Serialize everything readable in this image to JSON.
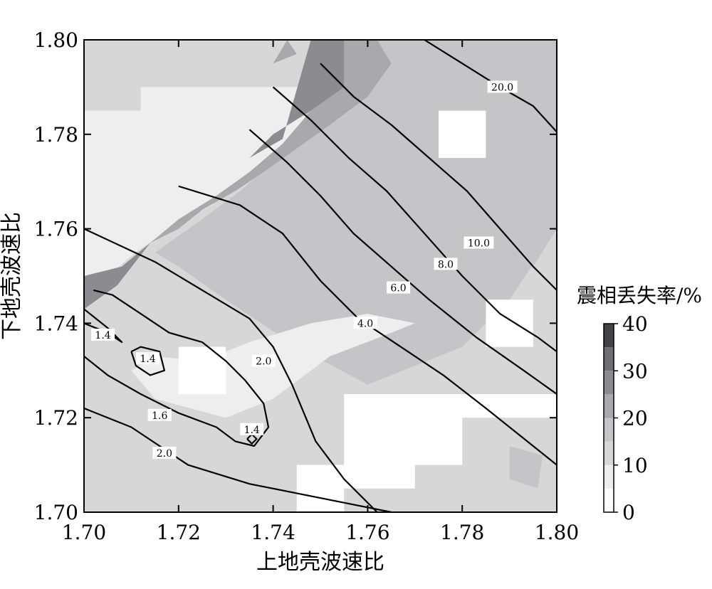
{
  "chart_data": {
    "type": "heatmap",
    "xlabel": "上地壳波速比",
    "ylabel": "下地壳波速比",
    "xlim": [
      1.7,
      1.8
    ],
    "ylim": [
      1.7,
      1.8
    ],
    "x_ticks": [
      "1.70",
      "1.72",
      "1.74",
      "1.76",
      "1.78",
      "1.80"
    ],
    "y_ticks": [
      "1.70",
      "1.72",
      "1.74",
      "1.76",
      "1.78",
      "1.80"
    ],
    "colorbar": {
      "title": "震相丢失率/%",
      "range": [
        0,
        40
      ],
      "ticks": [
        "0",
        "10",
        "20",
        "30",
        "40"
      ],
      "levels": [
        0,
        5,
        10,
        15,
        20,
        25,
        30,
        35,
        40
      ],
      "colors": [
        "#ffffff",
        "#eeeeee",
        "#d7d7d8",
        "#c5c5c7",
        "#a9a9ac",
        "#8c8c90",
        "#6f6f72",
        "#444446"
      ]
    },
    "fill_regions": [
      {
        "level": 1,
        "points": [
          [
            1.7,
            1.785
          ],
          [
            1.712,
            1.785
          ],
          [
            1.712,
            1.79
          ],
          [
            1.745,
            1.79
          ],
          [
            1.75,
            1.795
          ],
          [
            1.747,
            1.78
          ],
          [
            1.74,
            1.775
          ],
          [
            1.733,
            1.77
          ],
          [
            1.727,
            1.765
          ],
          [
            1.718,
            1.76
          ],
          [
            1.711,
            1.755
          ],
          [
            1.705,
            1.75
          ],
          [
            1.7,
            1.75
          ]
        ]
      },
      {
        "level": 3,
        "points": [
          [
            1.75,
            1.8
          ],
          [
            1.8,
            1.8
          ],
          [
            1.8,
            1.76
          ],
          [
            1.79,
            1.745
          ],
          [
            1.78,
            1.735
          ],
          [
            1.76,
            1.727
          ],
          [
            1.745,
            1.735
          ],
          [
            1.73,
            1.745
          ],
          [
            1.72,
            1.752
          ],
          [
            1.715,
            1.755
          ],
          [
            1.725,
            1.762
          ],
          [
            1.733,
            1.768
          ],
          [
            1.74,
            1.774
          ],
          [
            1.746,
            1.779
          ]
        ]
      },
      {
        "level": 4,
        "points": [
          [
            1.748,
            1.8
          ],
          [
            1.762,
            1.8
          ],
          [
            1.765,
            1.795
          ],
          [
            1.76,
            1.788
          ],
          [
            1.752,
            1.782
          ],
          [
            1.745,
            1.777
          ],
          [
            1.738,
            1.772
          ],
          [
            1.732,
            1.768
          ],
          [
            1.725,
            1.764
          ],
          [
            1.72,
            1.76
          ],
          [
            1.714,
            1.757
          ],
          [
            1.72,
            1.762
          ],
          [
            1.728,
            1.767
          ],
          [
            1.735,
            1.772
          ],
          [
            1.742,
            1.778
          ],
          [
            1.748,
            1.785
          ]
        ]
      },
      {
        "level": 5,
        "points": [
          [
            1.748,
            1.8
          ],
          [
            1.755,
            1.8
          ],
          [
            1.755,
            1.79
          ],
          [
            1.748,
            1.785
          ],
          [
            1.74,
            1.78
          ],
          [
            1.735,
            1.775
          ],
          [
            1.742,
            1.779
          ]
        ]
      },
      {
        "level": 5,
        "points": [
          [
            1.7,
            1.75
          ],
          [
            1.708,
            1.752
          ],
          [
            1.714,
            1.757
          ],
          [
            1.707,
            1.748
          ],
          [
            1.7,
            1.743
          ]
        ]
      },
      {
        "level": 4,
        "points": [
          [
            1.74,
            1.795
          ],
          [
            1.743,
            1.8
          ],
          [
            1.745,
            1.797
          ]
        ]
      },
      {
        "level": 1,
        "points": [
          [
            1.71,
            1.73
          ],
          [
            1.715,
            1.724
          ],
          [
            1.73,
            1.72
          ],
          [
            1.74,
            1.724
          ],
          [
            1.752,
            1.733
          ],
          [
            1.765,
            1.738
          ],
          [
            1.77,
            1.74
          ],
          [
            1.76,
            1.742
          ],
          [
            1.748,
            1.74
          ],
          [
            1.735,
            1.736
          ],
          [
            1.725,
            1.732
          ],
          [
            1.715,
            1.733
          ]
        ]
      },
      {
        "level": 0,
        "points": [
          [
            1.72,
            1.735
          ],
          [
            1.73,
            1.735
          ],
          [
            1.73,
            1.725
          ],
          [
            1.72,
            1.725
          ]
        ]
      },
      {
        "level": 0,
        "points": [
          [
            1.755,
            1.725
          ],
          [
            1.8,
            1.725
          ],
          [
            1.8,
            1.72
          ],
          [
            1.78,
            1.72
          ],
          [
            1.78,
            1.71
          ],
          [
            1.77,
            1.71
          ],
          [
            1.77,
            1.705
          ],
          [
            1.755,
            1.705
          ]
        ]
      },
      {
        "level": 0,
        "points": [
          [
            1.745,
            1.71
          ],
          [
            1.755,
            1.71
          ],
          [
            1.755,
            1.7
          ],
          [
            1.745,
            1.7
          ]
        ]
      },
      {
        "level": 0,
        "points": [
          [
            1.775,
            1.785
          ],
          [
            1.785,
            1.785
          ],
          [
            1.785,
            1.775
          ],
          [
            1.775,
            1.775
          ]
        ]
      },
      {
        "level": 0,
        "points": [
          [
            1.785,
            1.745
          ],
          [
            1.795,
            1.745
          ],
          [
            1.795,
            1.735
          ],
          [
            1.785,
            1.735
          ]
        ]
      },
      {
        "level": 3,
        "points": [
          [
            1.785,
            1.763
          ],
          [
            1.795,
            1.768
          ],
          [
            1.8,
            1.76
          ],
          [
            1.795,
            1.752
          ],
          [
            1.787,
            1.755
          ]
        ]
      },
      {
        "level": 3,
        "points": [
          [
            1.735,
            1.757
          ],
          [
            1.748,
            1.76
          ],
          [
            1.755,
            1.752
          ],
          [
            1.745,
            1.748
          ],
          [
            1.736,
            1.75
          ]
        ]
      },
      {
        "level": 3,
        "points": [
          [
            1.79,
            1.714
          ],
          [
            1.797,
            1.712
          ],
          [
            1.796,
            1.705
          ],
          [
            1.79,
            1.707
          ]
        ]
      }
    ],
    "contours": [
      {
        "level": "1.4",
        "points": [
          [
            1.7,
            1.743
          ],
          [
            1.705,
            1.739
          ],
          [
            1.708,
            1.736
          ],
          [
            1.705,
            1.738
          ],
          [
            1.7,
            1.74
          ]
        ],
        "label_at": [
          1.704,
          1.7375
        ]
      },
      {
        "level": "1.4",
        "points": [
          [
            1.71,
            1.734
          ],
          [
            1.712,
            1.735
          ],
          [
            1.716,
            1.734
          ],
          [
            1.717,
            1.73
          ],
          [
            1.714,
            1.729
          ],
          [
            1.711,
            1.731
          ],
          [
            1.71,
            1.734
          ]
        ],
        "label_at": [
          1.7135,
          1.7325
        ]
      },
      {
        "level": "1.4",
        "points": [
          [
            1.7345,
            1.7155
          ],
          [
            1.7355,
            1.7165
          ],
          [
            1.7365,
            1.7155
          ],
          [
            1.7355,
            1.7145
          ],
          [
            1.7345,
            1.7155
          ]
        ],
        "label_at": [
          1.7355,
          1.7175
        ]
      },
      {
        "level": "1.6",
        "points": [
          [
            1.7,
            1.733
          ],
          [
            1.705,
            1.729
          ],
          [
            1.712,
            1.725
          ],
          [
            1.72,
            1.721
          ],
          [
            1.728,
            1.718
          ],
          [
            1.732,
            1.715
          ],
          [
            1.736,
            1.714
          ],
          [
            1.739,
            1.718
          ],
          [
            1.738,
            1.723
          ],
          [
            1.734,
            1.728
          ],
          [
            1.73,
            1.732
          ],
          [
            1.725,
            1.736
          ],
          [
            1.718,
            1.738
          ],
          [
            1.712,
            1.742
          ],
          [
            1.706,
            1.746
          ],
          [
            1.702,
            1.747
          ]
        ],
        "label_at": [
          1.716,
          1.7205
        ]
      },
      {
        "level": "2.0",
        "points": [
          [
            1.7,
            1.722
          ],
          [
            1.71,
            1.718
          ],
          [
            1.722,
            1.71
          ],
          [
            1.735,
            1.706
          ],
          [
            1.745,
            1.704
          ],
          [
            1.755,
            1.702
          ],
          [
            1.765,
            1.7
          ]
        ],
        "label_at": [
          1.717,
          1.7125
        ]
      },
      {
        "level": "2.0",
        "points": [
          [
            1.7,
            1.76
          ],
          [
            1.715,
            1.753
          ],
          [
            1.725,
            1.747
          ],
          [
            1.735,
            1.741
          ],
          [
            1.74,
            1.735
          ],
          [
            1.744,
            1.727
          ],
          [
            1.749,
            1.715
          ],
          [
            1.755,
            1.707
          ],
          [
            1.762,
            1.7
          ]
        ],
        "label_at": [
          1.738,
          1.732
        ]
      },
      {
        "level": "4.0",
        "points": [
          [
            1.72,
            1.769
          ],
          [
            1.733,
            1.765
          ],
          [
            1.742,
            1.759
          ],
          [
            1.75,
            1.749
          ],
          [
            1.758,
            1.741
          ],
          [
            1.767,
            1.735
          ],
          [
            1.776,
            1.729
          ],
          [
            1.785,
            1.722
          ],
          [
            1.795,
            1.714
          ],
          [
            1.8,
            1.71
          ]
        ],
        "label_at": [
          1.7595,
          1.74
        ]
      },
      {
        "level": "6.0",
        "points": [
          [
            1.735,
            1.781
          ],
          [
            1.743,
            1.774
          ],
          [
            1.75,
            1.767
          ],
          [
            1.757,
            1.759
          ],
          [
            1.765,
            1.752
          ],
          [
            1.773,
            1.745
          ],
          [
            1.783,
            1.737
          ],
          [
            1.793,
            1.73
          ],
          [
            1.8,
            1.725
          ]
        ],
        "label_at": [
          1.7665,
          1.7475
        ]
      },
      {
        "level": "8.0",
        "points": [
          [
            1.74,
            1.79
          ],
          [
            1.748,
            1.783
          ],
          [
            1.756,
            1.775
          ],
          [
            1.764,
            1.768
          ],
          [
            1.772,
            1.759
          ],
          [
            1.78,
            1.75
          ],
          [
            1.788,
            1.742
          ],
          [
            1.796,
            1.737
          ],
          [
            1.8,
            1.734
          ]
        ],
        "label_at": [
          1.7765,
          1.7525
        ]
      },
      {
        "level": "10.0",
        "points": [
          [
            1.75,
            1.795
          ],
          [
            1.757,
            1.788
          ],
          [
            1.765,
            1.782
          ],
          [
            1.773,
            1.775
          ],
          [
            1.781,
            1.768
          ],
          [
            1.788,
            1.76
          ],
          [
            1.795,
            1.752
          ],
          [
            1.8,
            1.747
          ]
        ],
        "label_at": [
          1.7835,
          1.757
        ]
      },
      {
        "level": "20.0",
        "points": [
          [
            1.772,
            1.8
          ],
          [
            1.78,
            1.795
          ],
          [
            1.788,
            1.79
          ],
          [
            1.795,
            1.786
          ],
          [
            1.8,
            1.7805
          ]
        ],
        "label_at": [
          1.7885,
          1.79
        ]
      }
    ]
  }
}
